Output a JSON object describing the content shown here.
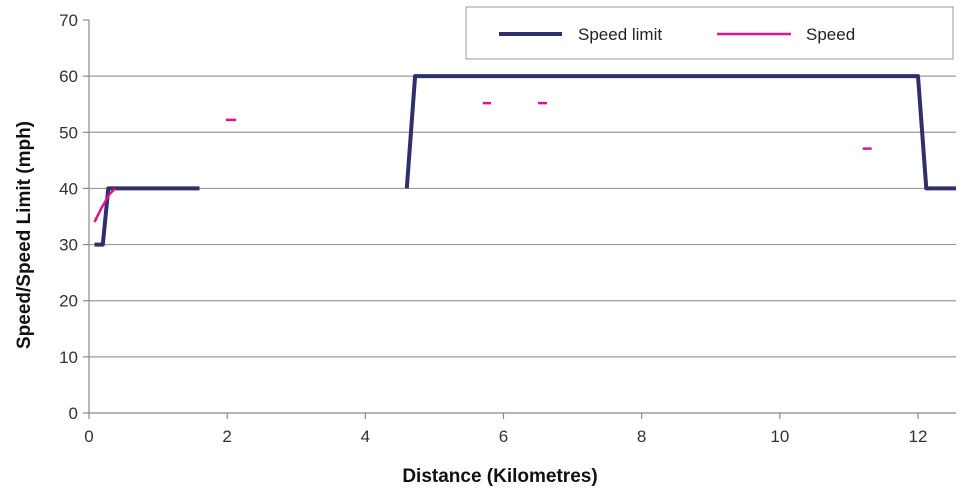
{
  "chart_data": {
    "type": "line",
    "title": "",
    "xlabel": "Distance (Kilometres)",
    "ylabel": "Speed/Speed Limit (mph)",
    "xlim": [
      0,
      12.55
    ],
    "ylim": [
      0,
      70
    ],
    "x_ticks": [
      0,
      2,
      4,
      6,
      8,
      10,
      12
    ],
    "y_ticks": [
      0,
      10,
      20,
      30,
      40,
      50,
      60,
      70
    ],
    "grid": "horizontal",
    "legend_position": "top-right",
    "series": [
      {
        "name": "Speed limit",
        "color": "#2e2f6b",
        "segments": [
          [
            [
              0.08,
              30
            ],
            [
              0.2,
              30
            ],
            [
              0.28,
              40
            ],
            [
              1.6,
              40
            ]
          ],
          [
            [
              4.6,
              40
            ],
            [
              4.72,
              60
            ],
            [
              12.0,
              60
            ],
            [
              12.12,
              40
            ],
            [
              12.55,
              40
            ]
          ]
        ]
      },
      {
        "name": "Speed",
        "color": "#e0138c",
        "segments": [
          [
            [
              0.08,
              34
            ],
            [
              0.18,
              36.5
            ],
            [
              0.3,
              39
            ],
            [
              0.38,
              40
            ]
          ],
          [
            [
              1.98,
              52.2
            ],
            [
              2.13,
              52.2
            ]
          ],
          [
            [
              5.7,
              55.2
            ],
            [
              5.82,
              55.2
            ]
          ],
          [
            [
              6.5,
              55.2
            ],
            [
              6.63,
              55.2
            ]
          ],
          [
            [
              11.2,
              47.1
            ],
            [
              11.33,
              47.1
            ]
          ]
        ]
      }
    ]
  }
}
